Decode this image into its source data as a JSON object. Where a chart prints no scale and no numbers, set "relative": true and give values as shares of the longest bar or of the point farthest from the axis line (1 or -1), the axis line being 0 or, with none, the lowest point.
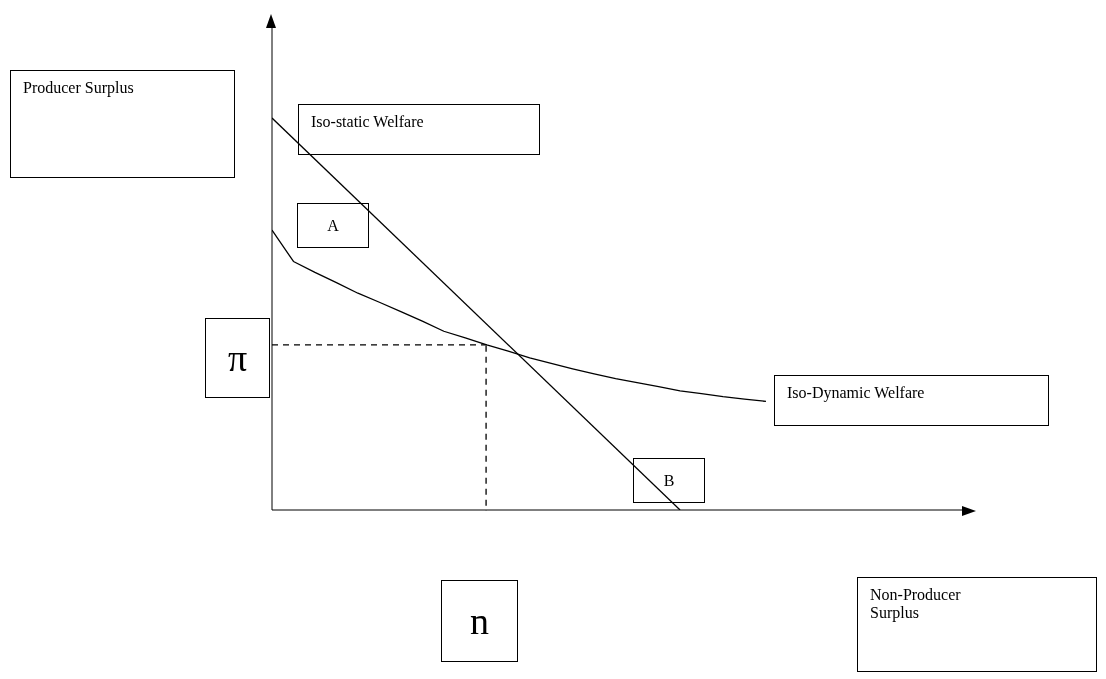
{
  "chart_data": {
    "type": "line",
    "relative": true,
    "marker": "none",
    "categories": [
      null,
      null,
      null,
      null,
      null,
      null,
      null,
      null,
      null,
      null,
      null,
      null,
      null,
      null,
      null,
      null,
      null,
      null,
      null,
      null,
      null,
      null,
      null,
      null
    ],
    "annotations": [
      "Producer Surplus",
      "A",
      "π",
      "B",
      "n",
      "Non-Producer Surplus"
    ],
    "series": [
      {
        "name": "Iso-static Welfare",
        "color": "#000000",
        "values": [
          1,
          null,
          null,
          null,
          null,
          null,
          null,
          null,
          null,
          null,
          null,
          null,
          null,
          null,
          null,
          null,
          null,
          null,
          null,
          0,
          null,
          null,
          null,
          null
        ]
      },
      {
        "name": "Iso-Dynamic Welfare",
        "color": "#000000",
        "values": [
          0.714,
          0.634,
          0.606,
          0.58,
          0.553,
          0.53,
          0.506,
          0.482,
          0.456,
          0.439,
          0.421,
          0.405,
          0.388,
          0.374,
          0.36,
          0.347,
          0.335,
          0.325,
          0.315,
          0.304,
          0.297,
          0.289,
          0.283,
          0.277
        ]
      },
      {
        "color": "#000000",
        "line_style": "dashed",
        "values": [
          0.421,
          null,
          null,
          null,
          null,
          null,
          null,
          null,
          null,
          null,
          0.421,
          null,
          null,
          null,
          null,
          null,
          null,
          null,
          null,
          null,
          null,
          null,
          null,
          null
        ]
      }
    ]
  }
}
